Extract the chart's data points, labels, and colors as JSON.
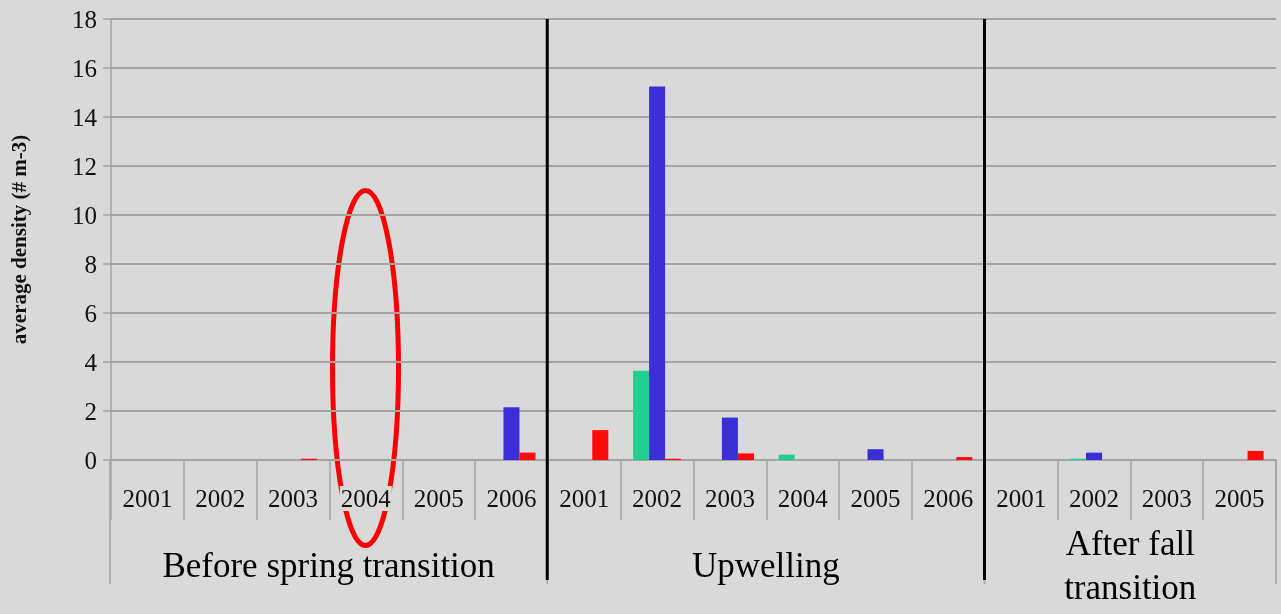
{
  "chart_data": {
    "type": "bar",
    "ylabel": "average density (# m-3)",
    "categories": [
      "2001",
      "2002",
      "2003",
      "2004",
      "2005",
      "2006",
      "2001",
      "2002",
      "2003",
      "2004",
      "2005",
      "2006",
      "2001",
      "2002",
      "2003",
      "2005"
    ],
    "series": [
      {
        "color": "#20d090",
        "values": [
          0,
          0,
          0,
          0,
          0,
          0,
          0,
          3.64,
          0,
          0.22,
          0,
          0,
          0,
          0.05,
          0,
          0
        ]
      },
      {
        "color": "#3a2ed8",
        "values": [
          0,
          0,
          0,
          0,
          0,
          2.15,
          0,
          15.24,
          1.73,
          0,
          0.44,
          0,
          0,
          0.3,
          0,
          0
        ]
      },
      {
        "color": "#ff0a0a",
        "values": [
          0,
          0,
          0.05,
          0,
          0,
          0.3,
          1.22,
          0.05,
          0.27,
          0,
          0,
          0.12,
          0,
          0,
          0,
          0.37
        ]
      }
    ],
    "annotations": [
      "Before spring transition",
      "Upwelling",
      "After fall transition"
    ],
    "ylim": [
      0,
      18
    ],
    "yticks": [
      0,
      2,
      4,
      6,
      8,
      10,
      12,
      14,
      16,
      18
    ],
    "grid": "y"
  }
}
